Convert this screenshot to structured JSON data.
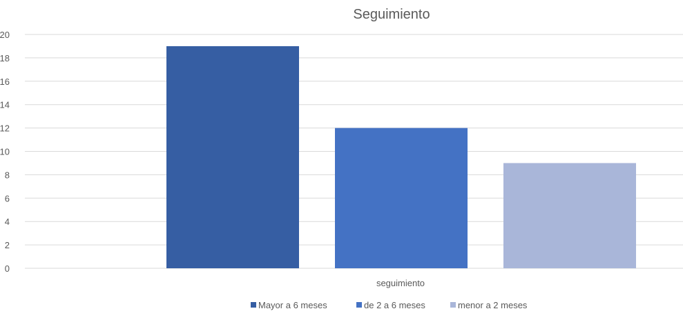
{
  "chart_data": {
    "type": "bar",
    "title": "Seguimiento",
    "categories": [
      "seguimiento"
    ],
    "series": [
      {
        "name": "Mayor a 6 meses",
        "values": [
          19
        ],
        "color": "#365ea3"
      },
      {
        "name": "de 2 a 6 meses",
        "values": [
          12
        ],
        "color": "#4472c4"
      },
      {
        "name": "menor a 2 meses",
        "values": [
          9
        ],
        "color": "#a9b6d9"
      }
    ],
    "yticks": [
      "0",
      "2",
      "4",
      "6",
      "8",
      "10",
      "12",
      "14",
      "16",
      "18",
      "20"
    ],
    "ylim": [
      0,
      20
    ],
    "grid": true,
    "legend_position": "bottom"
  }
}
